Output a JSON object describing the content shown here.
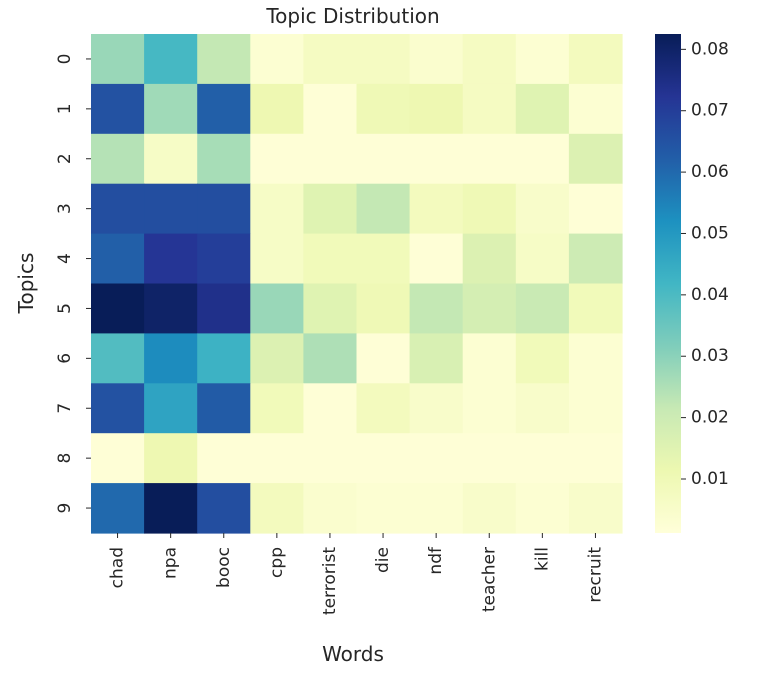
{
  "chart_data": {
    "type": "heatmap",
    "title": "Topic Distribution",
    "xlabel": "Words",
    "ylabel": "Topics",
    "x_categories": [
      "chad",
      "npa",
      "booc",
      "cpp",
      "terrorist",
      "die",
      "ndf",
      "teacher",
      "kill",
      "recruit"
    ],
    "y_categories": [
      "0",
      "1",
      "2",
      "3",
      "4",
      "5",
      "6",
      "7",
      "8",
      "9"
    ],
    "values": [
      [
        0.028,
        0.041,
        0.022,
        0.003,
        0.007,
        0.007,
        0.004,
        0.007,
        0.003,
        0.008
      ],
      [
        0.065,
        0.027,
        0.062,
        0.011,
        0.002,
        0.01,
        0.011,
        0.007,
        0.015,
        0.003
      ],
      [
        0.024,
        0.006,
        0.026,
        0.002,
        0.002,
        0.002,
        0.002,
        0.002,
        0.002,
        0.016
      ],
      [
        0.066,
        0.066,
        0.066,
        0.006,
        0.015,
        0.022,
        0.008,
        0.01,
        0.005,
        0.002
      ],
      [
        0.062,
        0.072,
        0.07,
        0.006,
        0.009,
        0.009,
        0.002,
        0.016,
        0.006,
        0.02
      ],
      [
        0.083,
        0.08,
        0.074,
        0.028,
        0.015,
        0.01,
        0.022,
        0.018,
        0.021,
        0.009
      ],
      [
        0.039,
        0.053,
        0.043,
        0.016,
        0.025,
        0.002,
        0.017,
        0.003,
        0.009,
        0.003
      ],
      [
        0.065,
        0.047,
        0.063,
        0.009,
        0.002,
        0.008,
        0.005,
        0.003,
        0.005,
        0.003
      ],
      [
        0.002,
        0.011,
        0.002,
        0.002,
        0.002,
        0.002,
        0.002,
        0.002,
        0.002,
        0.002
      ],
      [
        0.06,
        0.083,
        0.066,
        0.008,
        0.004,
        0.003,
        0.003,
        0.005,
        0.003,
        0.005
      ]
    ],
    "colorbar": {
      "min": 0.0012,
      "max": 0.0825,
      "ticks": [
        0.01,
        0.02,
        0.03,
        0.04,
        0.05,
        0.06,
        0.07,
        0.08
      ],
      "tick_labels": [
        "0.01",
        "0.02",
        "0.03",
        "0.04",
        "0.05",
        "0.06",
        "0.07",
        "0.08"
      ],
      "colormap": "YlGnBu",
      "colormap_stops": [
        "#ffffd9",
        "#edf8b1",
        "#c7e9b4",
        "#7fcdbb",
        "#41b6c4",
        "#1d91c0",
        "#225ea8",
        "#253494",
        "#081d58"
      ]
    },
    "grid": false
  }
}
